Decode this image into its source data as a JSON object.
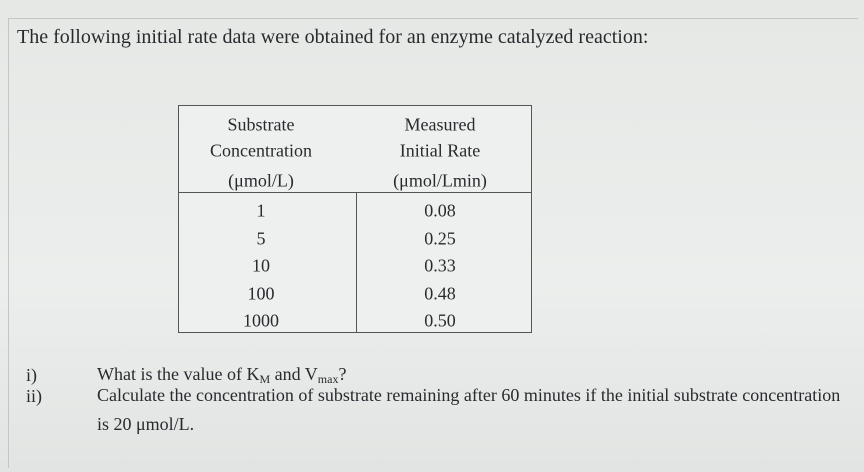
{
  "intro": "The following initial rate data were obtained for an enzyme catalyzed reaction:",
  "table": {
    "headers": [
      [
        "Substrate",
        "Concentration",
        "(μmol/L)"
      ],
      [
        "Measured",
        "Initial Rate",
        "(μmol/Lmin)"
      ]
    ],
    "rows": [
      [
        "1",
        "0.08"
      ],
      [
        "5",
        "0.25"
      ],
      [
        "10",
        "0.33"
      ],
      [
        "100",
        "0.48"
      ],
      [
        "1000",
        "0.50"
      ]
    ]
  },
  "questions": [
    {
      "number": "i)",
      "parts": [
        "What is the value of K",
        "M",
        " and V",
        "max",
        "?"
      ]
    },
    {
      "number": "ii)",
      "parts": [
        "Calculate the concentration of substrate remaining after 60 minutes if the initial substrate concentration is 20 μmol/L."
      ]
    }
  ]
}
